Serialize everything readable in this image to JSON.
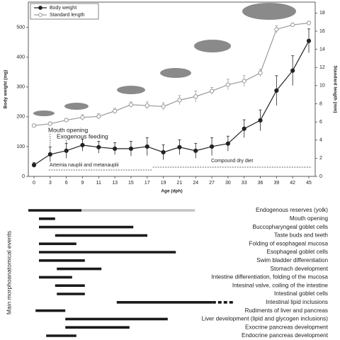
{
  "chart_data": [
    {
      "type": "line",
      "x_label": "Age (dph)",
      "y_label": "Body weight (mg)",
      "y2_label": "Standard length (mm)",
      "categories": [
        0,
        3,
        6,
        9,
        11,
        13,
        15,
        17,
        19,
        21,
        24,
        27,
        30,
        33,
        36,
        39,
        42,
        45
      ],
      "series": [
        {
          "name": "Body weight",
          "color": "#222222",
          "marker": "filled",
          "values": [
            38,
            74,
            86,
            105,
            98,
            93,
            93,
            100,
            81,
            98,
            86,
            100,
            110,
            160,
            188,
            288,
            355,
            455
          ],
          "errors": [
            8,
            25,
            25,
            20,
            20,
            20,
            25,
            30,
            25,
            25,
            25,
            30,
            25,
            30,
            35,
            50,
            50,
            40
          ]
        },
        {
          "name": "Standard length",
          "color": "#9a9a9a",
          "marker": "open",
          "axis": "y2",
          "values": [
            5.6,
            5.8,
            6.2,
            6.5,
            6.6,
            7.2,
            7.9,
            7.8,
            7.7,
            8.4,
            8.8,
            9.4,
            10.1,
            10.5,
            11.4,
            16.2,
            16.7,
            16.9
          ],
          "errors": [
            0.1,
            0.2,
            0.2,
            0.3,
            0.3,
            0.3,
            0.3,
            0.4,
            0.4,
            0.5,
            0.6,
            0.4,
            0.6,
            0.6,
            0.4,
            0.4,
            0.2,
            0.2
          ]
        }
      ],
      "ylim": [
        0,
        585
      ],
      "yticks": [
        0,
        100,
        200,
        300,
        400,
        500
      ],
      "y2lim": [
        0,
        19.2
      ],
      "y2ticks": [
        0,
        2,
        4,
        6,
        8,
        10,
        12,
        14,
        16,
        18
      ],
      "legend": "upper left",
      "annotations": [
        "Mouth opening",
        "Exogenous feeding",
        "Artemia nauplii and metanauplii",
        "Compound dry diet"
      ]
    },
    {
      "type": "gantt",
      "y_label": "Main morphoanatomical events",
      "xlim": [
        0,
        50
      ],
      "categories": [
        "Endogenous reserves (yolk)",
        "Mouth opening",
        "Buccopharyngeal goblet cells",
        "Taste buds and teeth",
        "Folding of esophageal mucosa",
        "Esophageal goblet cells",
        "Swim bladder differentiation",
        "Stomach development",
        "Intestine differentiation, folding of the mucosa",
        "Intesinal valve, coiling of the intestine",
        "Intestinal goblet cells",
        "Intestinal lipid inclusions",
        "Rudiments of liver and pancreas",
        "Liver development (lipid and glycogen inclusions)",
        "Exocrine pancreas development",
        "Endocrine pancreas development"
      ],
      "segments": [
        [
          {
            "start": 0,
            "end": 12.5,
            "style": "solid"
          },
          {
            "start": 12.5,
            "end": 39.2,
            "style": "light"
          }
        ],
        [
          {
            "start": 2.5,
            "end": 6.3,
            "style": "solid"
          }
        ],
        [
          {
            "start": 2.5,
            "end": 24.7,
            "style": "solid"
          }
        ],
        [
          {
            "start": 6.3,
            "end": 28,
            "style": "solid"
          }
        ],
        [
          {
            "start": 2.5,
            "end": 11.3,
            "style": "solid"
          }
        ],
        [
          {
            "start": 2.5,
            "end": 34.7,
            "style": "solid"
          }
        ],
        [
          {
            "start": 2.5,
            "end": 13.3,
            "style": "solid"
          }
        ],
        [
          {
            "start": 6.7,
            "end": 17.2,
            "style": "solid"
          }
        ],
        [
          {
            "start": 2.5,
            "end": 10.3,
            "style": "solid"
          }
        ],
        [
          {
            "start": 6.3,
            "end": 13.3,
            "style": "solid"
          }
        ],
        [
          {
            "start": 6.7,
            "end": 13.3,
            "style": "solid"
          }
        ],
        [
          {
            "start": 20.8,
            "end": 43.3,
            "style": "solid"
          },
          {
            "start": 43.3,
            "end": 48.3,
            "style": "dashed"
          }
        ],
        [
          {
            "start": 1.7,
            "end": 8.7,
            "style": "solid"
          }
        ],
        [
          {
            "start": 8.7,
            "end": 32.8,
            "style": "solid"
          }
        ],
        [
          {
            "start": 8.7,
            "end": 23.8,
            "style": "solid"
          }
        ],
        [
          {
            "start": 4.2,
            "end": 11.3,
            "style": "solid"
          }
        ]
      ]
    }
  ]
}
